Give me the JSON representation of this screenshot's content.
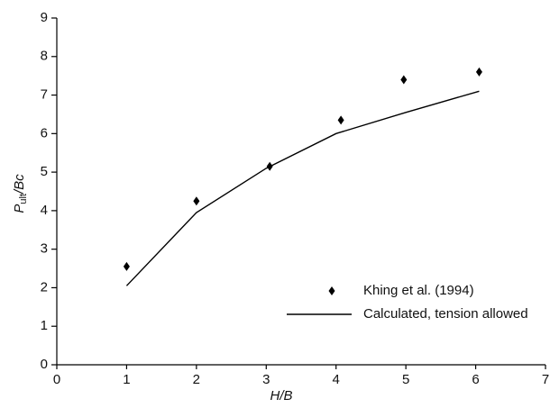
{
  "chart_data": {
    "type": "line",
    "xlabel": "H/B",
    "ylabel": {
      "main": "P",
      "sub": "ult",
      "rest": "/Bc"
    },
    "xlim": [
      0,
      7
    ],
    "ylim": [
      0,
      9
    ],
    "xticks": [
      0,
      1,
      2,
      3,
      4,
      5,
      6,
      7
    ],
    "yticks": [
      0,
      1,
      2,
      3,
      4,
      5,
      6,
      7,
      8,
      9
    ],
    "grid": false,
    "legend": "lower right",
    "series": [
      {
        "name": "Khing et al. (1994)",
        "type": "scatter",
        "marker": "diamond",
        "color": "#000000",
        "x": [
          1,
          2,
          3.05,
          4.07,
          4.97,
          6.05
        ],
        "values": [
          2.55,
          4.25,
          5.15,
          6.35,
          7.4,
          7.6
        ]
      },
      {
        "name": "Calculated, tension allowed",
        "type": "line",
        "color": "#000000",
        "x": [
          1,
          2,
          3,
          4,
          5,
          6.05
        ],
        "values": [
          2.05,
          3.95,
          5.1,
          6.0,
          6.55,
          7.1
        ]
      }
    ]
  }
}
